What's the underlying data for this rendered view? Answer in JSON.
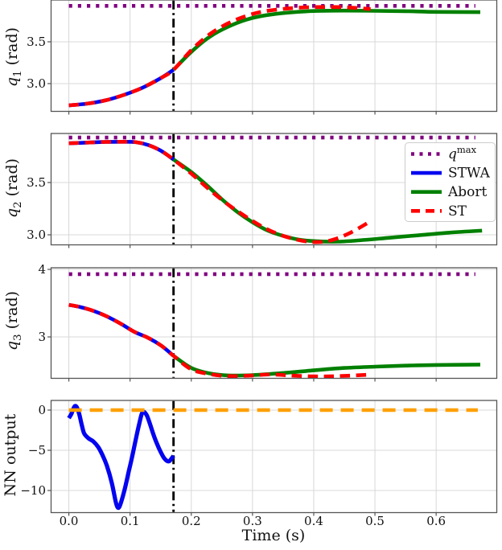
{
  "page": {
    "background": "#ffffff"
  },
  "chart_data": {
    "type": "line",
    "title": "",
    "xlabel": "Time (s)",
    "grid": true,
    "xlim": [
      -0.029,
      0.699
    ],
    "xticks": [
      0.0,
      0.1,
      0.2,
      0.3,
      0.4,
      0.5,
      0.6
    ],
    "xtick_labels": [
      "0.0",
      "0.1",
      "0.2",
      "0.3",
      "0.4",
      "0.5",
      "0.6"
    ],
    "event_line": {
      "x": 0.171,
      "color": "#000000",
      "style": "dashdot"
    },
    "colors": {
      "qmax": "#800080",
      "STWA": "#0404f0",
      "Abort": "#008000",
      "ST": "#ff0000",
      "NN": "#0404f0",
      "zero": "#ffa000",
      "grid": "#d8d8d8",
      "spine": "#555555",
      "tick_text": "#111111"
    },
    "legend": {
      "position": "upper-right of q2 subplot",
      "items": [
        {
          "key": "qmax",
          "label": "q",
          "sup": "max",
          "color": "#800080",
          "style": "dotted"
        },
        {
          "key": "STWA",
          "label": "STWA",
          "color": "#0404f0",
          "style": "solid"
        },
        {
          "key": "Abort",
          "label": "Abort",
          "color": "#008000",
          "style": "solid"
        },
        {
          "key": "ST",
          "label": "ST",
          "color": "#ff0000",
          "style": "dashed"
        }
      ]
    },
    "subplots": [
      {
        "name": "q1",
        "ylabel": {
          "math": "q",
          "sub": "1",
          "rest": " (rad)"
        },
        "ylim": [
          2.668,
          4.0
        ],
        "yticks": [
          3.0,
          3.5
        ],
        "ytick_labels": [
          "3.0",
          "3.5"
        ],
        "series": [
          {
            "key": "qmax",
            "style": "dotted",
            "color": "#800080",
            "x": [
              0,
              0.664
            ],
            "y": [
              3.93,
              3.93
            ]
          },
          {
            "key": "STWA",
            "style": "solid",
            "color": "#0404f0",
            "x": [
              0,
              0.03,
              0.06,
              0.09,
              0.12,
              0.15,
              0.171
            ],
            "y": [
              2.74,
              2.76,
              2.8,
              2.865,
              2.95,
              3.065,
              3.165
            ]
          },
          {
            "key": "Abort",
            "style": "solid",
            "color": "#008000",
            "x": [
              0.171,
              0.2,
              0.23,
              0.26,
              0.29,
              0.32,
              0.36,
              0.4,
              0.45,
              0.5,
              0.55,
              0.6,
              0.672
            ],
            "y": [
              3.165,
              3.38,
              3.56,
              3.68,
              3.765,
              3.815,
              3.85,
              3.868,
              3.873,
              3.87,
              3.866,
              3.858,
              3.855
            ]
          },
          {
            "key": "ST",
            "style": "dashed",
            "color": "#ff0000",
            "x": [
              0,
              0.03,
              0.06,
              0.09,
              0.12,
              0.15,
              0.171,
              0.2,
              0.23,
              0.26,
              0.29,
              0.32,
              0.36,
              0.4,
              0.44,
              0.47,
              0.493
            ],
            "y": [
              2.74,
              2.76,
              2.8,
              2.865,
              2.95,
              3.065,
              3.165,
              3.4,
              3.59,
              3.72,
              3.81,
              3.865,
              3.9,
              3.915,
              3.915,
              3.905,
              3.89
            ]
          }
        ]
      },
      {
        "name": "q2",
        "ylabel": {
          "math": "q",
          "sub": "2",
          "rest": " (rad)"
        },
        "ylim": [
          2.904,
          3.969
        ],
        "yticks": [
          3.0,
          3.5
        ],
        "ytick_labels": [
          "3.0",
          "3.5"
        ],
        "series": [
          {
            "key": "qmax",
            "style": "dotted",
            "color": "#800080",
            "x": [
              0,
              0.664
            ],
            "y": [
              3.93,
              3.93
            ]
          },
          {
            "key": "STWA",
            "style": "solid",
            "color": "#0404f0",
            "x": [
              0,
              0.03,
              0.06,
              0.09,
              0.11,
              0.13,
              0.15,
              0.171
            ],
            "y": [
              3.875,
              3.882,
              3.888,
              3.89,
              3.885,
              3.858,
              3.805,
              3.72
            ]
          },
          {
            "key": "Abort",
            "style": "solid",
            "color": "#008000",
            "x": [
              0.171,
              0.2,
              0.226,
              0.25,
              0.275,
              0.3,
              0.325,
              0.35,
              0.375,
              0.4,
              0.44,
              0.48,
              0.52,
              0.57,
              0.62,
              0.675
            ],
            "y": [
              3.72,
              3.6,
              3.47,
              3.34,
              3.22,
              3.12,
              3.04,
              2.99,
              2.955,
              2.94,
              2.935,
              2.95,
              2.97,
              2.995,
              3.02,
              3.04
            ]
          },
          {
            "key": "ST",
            "style": "dashed",
            "color": "#ff0000",
            "x": [
              0,
              0.03,
              0.06,
              0.09,
              0.11,
              0.13,
              0.15,
              0.171,
              0.2,
              0.23,
              0.26,
              0.29,
              0.32,
              0.35,
              0.38,
              0.405,
              0.43,
              0.46,
              0.49
            ],
            "y": [
              3.875,
              3.882,
              3.888,
              3.89,
              3.885,
              3.858,
              3.805,
              3.72,
              3.585,
              3.43,
              3.29,
              3.17,
              3.065,
              2.99,
              2.945,
              2.93,
              2.95,
              3.02,
              3.12
            ]
          }
        ]
      },
      {
        "name": "q3",
        "ylabel": {
          "math": "q",
          "sub": "3",
          "rest": " (rad)"
        },
        "ylim": [
          2.387,
          4.024
        ],
        "yticks": [
          3,
          4
        ],
        "ytick_labels": [
          "3",
          "4"
        ],
        "series": [
          {
            "key": "qmax",
            "style": "dotted",
            "color": "#800080",
            "x": [
              0,
              0.664
            ],
            "y": [
              3.93,
              3.93
            ]
          },
          {
            "key": "STWA",
            "style": "solid",
            "color": "#0404f0",
            "x": [
              0,
              0.02,
              0.042,
              0.063,
              0.086,
              0.108,
              0.129,
              0.151,
              0.171
            ],
            "y": [
              3.475,
              3.44,
              3.38,
              3.3,
              3.19,
              3.07,
              2.99,
              2.87,
              2.72
            ]
          },
          {
            "key": "Abort",
            "style": "solid",
            "color": "#008000",
            "x": [
              0.171,
              0.2,
              0.23,
              0.26,
              0.3,
              0.35,
              0.4,
              0.45,
              0.5,
              0.55,
              0.6,
              0.672
            ],
            "y": [
              2.72,
              2.54,
              2.46,
              2.43,
              2.435,
              2.465,
              2.505,
              2.54,
              2.56,
              2.575,
              2.585,
              2.59
            ]
          },
          {
            "key": "ST",
            "style": "dashed",
            "color": "#ff0000",
            "x": [
              0,
              0.02,
              0.042,
              0.063,
              0.086,
              0.108,
              0.129,
              0.151,
              0.171,
              0.2,
              0.23,
              0.26,
              0.3,
              0.33,
              0.36,
              0.4,
              0.44,
              0.49
            ],
            "y": [
              3.475,
              3.44,
              3.38,
              3.3,
              3.19,
              3.07,
              2.99,
              2.87,
              2.72,
              2.52,
              2.45,
              2.42,
              2.43,
              2.445,
              2.43,
              2.415,
              2.42,
              2.44
            ]
          }
        ]
      },
      {
        "name": "nn-output",
        "ylabel": {
          "math": "",
          "sub": "",
          "rest": "NN output"
        },
        "ylim": [
          -12.75,
          1.2
        ],
        "yticks": [
          -10,
          -5,
          0
        ],
        "ytick_labels": [
          "−10",
          "−5",
          "0"
        ],
        "series": [
          {
            "key": "NN",
            "style": "solid",
            "color": "#0404f0",
            "x": [
              0,
              0.004,
              0.007,
              0.01,
              0.013,
              0.017,
              0.021,
              0.025,
              0.032,
              0.04,
              0.048,
              0.055,
              0.062,
              0.07,
              0.076,
              0.079,
              0.082,
              0.086,
              0.092,
              0.098,
              0.104,
              0.11,
              0.115,
              0.119,
              0.122,
              0.127,
              0.132,
              0.138,
              0.144,
              0.15,
              0.155,
              0.16,
              0.164,
              0.168,
              0.171
            ],
            "y": [
              -1.0,
              -0.5,
              0.1,
              0.5,
              0.35,
              -0.5,
              -1.8,
              -2.9,
              -3.5,
              -3.9,
              -4.6,
              -5.6,
              -6.9,
              -9.0,
              -11.2,
              -12.0,
              -12.1,
              -11.3,
              -9.6,
              -7.6,
              -5.6,
              -3.4,
              -1.7,
              -0.5,
              -0.2,
              -0.6,
              -1.6,
              -3.0,
              -4.2,
              -5.2,
              -5.9,
              -6.3,
              -6.35,
              -6.0,
              -5.7
            ]
          },
          {
            "key": "zero",
            "style": "longdash",
            "color": "#ffa000",
            "x": [
              0,
              0.668
            ],
            "y": [
              0,
              0
            ]
          }
        ]
      }
    ]
  }
}
